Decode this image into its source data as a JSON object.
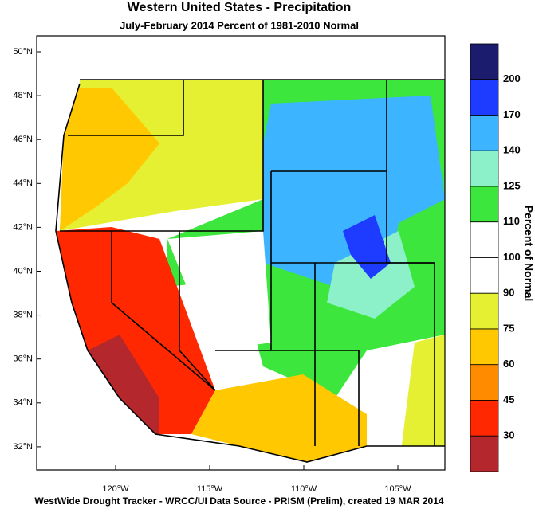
{
  "title": "Western United States - Precipitation",
  "subtitle": "July-February 2014  Percent of 1981-2010 Normal",
  "map": {
    "lat_labels": [
      "50°N",
      "48°N",
      "46°N",
      "44°N",
      "42°N",
      "40°N",
      "38°N",
      "36°N",
      "34°N",
      "32°N"
    ],
    "lon_labels": [
      "120°W",
      "115°W",
      "110°W",
      "105°W"
    ]
  },
  "colorbar": {
    "label": "Percent of Normal",
    "ticks": [
      200,
      170,
      140,
      125,
      110,
      100,
      90,
      75,
      60,
      45,
      30
    ],
    "colors": [
      "#1c1c6e",
      "#1e3cff",
      "#3cb4ff",
      "#8cf0c8",
      "#3ce63c",
      "#ffffff",
      "#ffffff",
      "#e6f032",
      "#ffc800",
      "#ff8c00",
      "#ff2800",
      "#b4282d"
    ]
  },
  "footer": "WestWide Drought Tracker - WRCC/UI  Data Source - PRISM (Prelim), created 19 MAR 2014"
}
